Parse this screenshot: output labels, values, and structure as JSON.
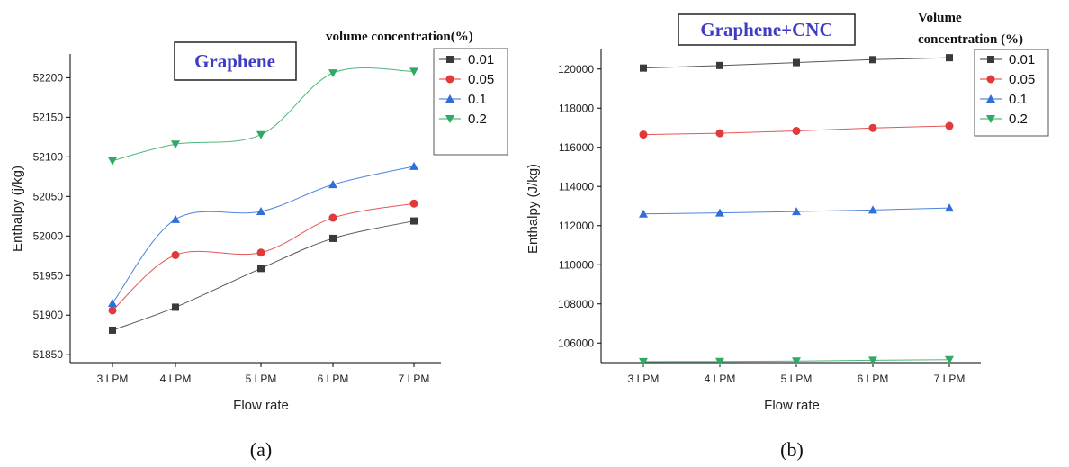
{
  "chart_data": [
    {
      "type": "line",
      "title": "Graphene",
      "caption": "(a)",
      "xlabel": "Flow rate",
      "ylabel": "Enthalpy (j/kg)",
      "categories": [
        "3 LPM",
        "4 LPM",
        "5 LPM",
        "6 LPM",
        "7 LPM"
      ],
      "ylim": [
        51840,
        52230
      ],
      "yticks": [
        51850,
        51900,
        51950,
        52000,
        52050,
        52100,
        52150,
        52200
      ],
      "legend_title": "volume concentration(%)",
      "legend_position": "top-right",
      "grid": false,
      "smooth": true,
      "series": [
        {
          "name": "0.01",
          "color": "#3a3a3a",
          "marker": "square",
          "values": [
            51881,
            51910,
            51959,
            51997,
            52019
          ]
        },
        {
          "name": "0.05",
          "color": "#e03a3a",
          "marker": "circle",
          "values": [
            51906,
            51976,
            51979,
            52023,
            52041
          ]
        },
        {
          "name": "0.1",
          "color": "#2f6fd6",
          "marker": "triangle-up",
          "values": [
            51915,
            52021,
            52031,
            52065,
            52088
          ]
        },
        {
          "name": "0.2",
          "color": "#2eaa62",
          "marker": "triangle-down",
          "values": [
            52095,
            52116,
            52128,
            52206,
            52208
          ]
        }
      ]
    },
    {
      "type": "line",
      "title": "Graphene+CNC",
      "caption": "(b)",
      "xlabel": "Flow rate",
      "ylabel": "Enthalpy (J/kg)",
      "categories": [
        "3 LPM",
        "4 LPM",
        "5 LPM",
        "6 LPM",
        "7 LPM"
      ],
      "ylim": [
        105000,
        121000
      ],
      "yticks": [
        106000,
        108000,
        110000,
        112000,
        114000,
        116000,
        118000,
        120000
      ],
      "legend_title": [
        "Volume",
        "concentration (%)"
      ],
      "legend_position": "top-right",
      "grid": false,
      "smooth": false,
      "series": [
        {
          "name": "0.01",
          "color": "#3a3a3a",
          "marker": "square",
          "values": [
            120050,
            120180,
            120330,
            120480,
            120580
          ]
        },
        {
          "name": "0.05",
          "color": "#e03a3a",
          "marker": "circle",
          "values": [
            116650,
            116720,
            116840,
            116990,
            117090
          ]
        },
        {
          "name": "0.1",
          "color": "#2f6fd6",
          "marker": "triangle-up",
          "values": [
            112600,
            112650,
            112720,
            112800,
            112900
          ]
        },
        {
          "name": "0.2",
          "color": "#2eaa62",
          "marker": "triangle-down",
          "values": [
            105050,
            105060,
            105080,
            105120,
            105150
          ]
        }
      ]
    }
  ]
}
